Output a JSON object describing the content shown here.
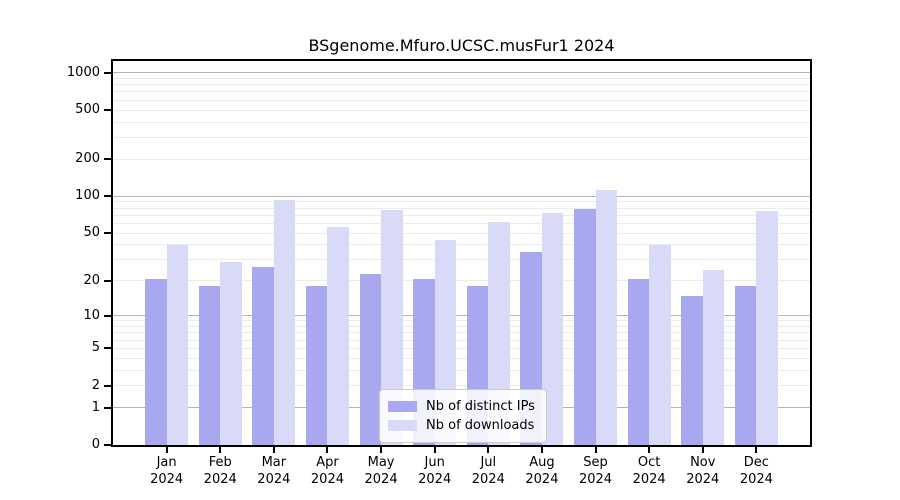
{
  "chart_data": {
    "type": "bar",
    "title": "BSgenome.Mfuro.UCSC.musFur1 2024",
    "categories": [
      "Jan",
      "Feb",
      "Mar",
      "Apr",
      "May",
      "Jun",
      "Jul",
      "Aug",
      "Sep",
      "Oct",
      "Nov",
      "Dec"
    ],
    "x_sublabel": "2024",
    "series": [
      {
        "name": "Nb of distinct IPs",
        "color": "#a8a8f0",
        "values": [
          21,
          18,
          26,
          18,
          23,
          21,
          18,
          35,
          79,
          21,
          15,
          18
        ]
      },
      {
        "name": "Nb of downloads",
        "color": "#d9d9f8",
        "values": [
          40,
          29,
          93,
          56,
          78,
          44,
          62,
          73,
          113,
          40,
          25,
          76
        ]
      }
    ],
    "xlabel": "",
    "ylabel": "",
    "y_axis": {
      "scale": "log10(value+1)",
      "tick_values": [
        0,
        1,
        2,
        5,
        10,
        20,
        50,
        100,
        200,
        500,
        1000
      ],
      "major_gridlines": [
        1,
        10,
        100,
        1000
      ],
      "ylim": [
        0,
        1244
      ]
    },
    "legend": {
      "position": "lower-center",
      "entries": [
        "Nb of distinct IPs",
        "Nb of downloads"
      ]
    },
    "grid": true
  },
  "colors": {
    "axis": "#000000",
    "major_grid": "#b3b3b3",
    "minor_grid": "#ebebeb",
    "background": "#ffffff"
  }
}
